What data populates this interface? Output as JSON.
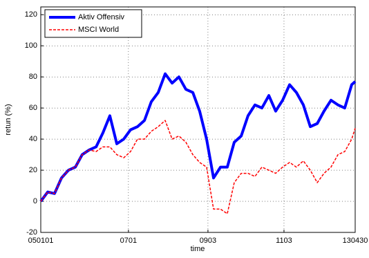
{
  "chart_data": {
    "type": "line",
    "xlabel": "time",
    "ylabel": "retun (%)",
    "x": [
      0,
      46,
      91,
      137,
      183,
      229,
      274,
      320,
      366,
      411,
      457,
      503,
      549,
      594,
      640,
      686,
      731,
      777,
      823,
      869,
      914,
      960,
      1006,
      1051,
      1097,
      1143,
      1189,
      1234,
      1280,
      1326,
      1371,
      1417,
      1463,
      1509,
      1554,
      1600,
      1646,
      1691,
      1737,
      1783,
      1829,
      1874,
      1920,
      1966,
      2011,
      2057,
      2080
    ],
    "series": [
      {
        "name": "Aktiv Offensiv",
        "color": "#0000ff",
        "style": "solid",
        "width": 4,
        "values": [
          0,
          6,
          5,
          15,
          20,
          22,
          30,
          33,
          35,
          44,
          55,
          37,
          40,
          46,
          48,
          52,
          64,
          70,
          82,
          76,
          80,
          72,
          70,
          58,
          40,
          15,
          22,
          22,
          38,
          42,
          55,
          62,
          60,
          68,
          58,
          65,
          75,
          70,
          62,
          48,
          50,
          58,
          65,
          62,
          60,
          75,
          77
        ]
      },
      {
        "name": "MSCI World",
        "color": "#ff0000",
        "style": "dashed",
        "width": 1.5,
        "values": [
          0,
          6,
          5,
          15,
          20,
          22,
          30,
          33,
          32,
          35,
          35,
          30,
          28,
          32,
          40,
          40,
          45,
          48,
          52,
          40,
          42,
          38,
          30,
          25,
          22,
          -5,
          -5,
          -8,
          12,
          18,
          18,
          16,
          22,
          20,
          18,
          22,
          25,
          22,
          26,
          20,
          12,
          18,
          22,
          30,
          32,
          40,
          47
        ]
      }
    ],
    "xlim": [
      0,
      2080
    ],
    "xticks": [
      {
        "value": 0,
        "label": "050101"
      },
      {
        "value": 580,
        "label": "0701"
      },
      {
        "value": 1106,
        "label": "0903"
      },
      {
        "value": 1609,
        "label": "1103"
      },
      {
        "value": 2080,
        "label": "130430"
      }
    ],
    "ylim": [
      -20,
      125
    ],
    "yticks": [
      -20,
      0,
      20,
      40,
      60,
      80,
      100,
      120
    ],
    "grid": true,
    "legend": "upper left"
  }
}
